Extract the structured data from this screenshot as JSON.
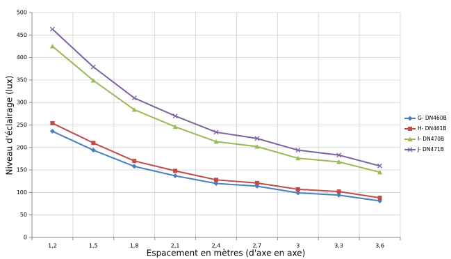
{
  "chart_data": {
    "type": "line",
    "x_label": "Espacement en mètres (d'axe en axe)",
    "y_label": "Niveau d'éclairage (lux)",
    "categories": [
      "1,2",
      "1,5",
      "1,8",
      "2,1",
      "2,4",
      "2,7",
      "3",
      "3,3",
      "3,6"
    ],
    "series": [
      {
        "name": "G- DN460B",
        "color": "#4a7ebb",
        "marker": "diamond",
        "values": [
          236,
          194,
          158,
          137,
          120,
          114,
          99,
          94,
          81
        ]
      },
      {
        "name": "H- DN461B",
        "color": "#be4b48",
        "marker": "square",
        "values": [
          254,
          210,
          170,
          148,
          128,
          121,
          107,
          102,
          88
        ]
      },
      {
        "name": "I- DN470B",
        "color": "#98b954",
        "marker": "triangle",
        "values": [
          425,
          349,
          284,
          246,
          213,
          202,
          176,
          168,
          145
        ]
      },
      {
        "name": "J- DN471B",
        "color": "#7d60a0",
        "marker": "x",
        "values": [
          463,
          379,
          310,
          270,
          234,
          220,
          194,
          183,
          159
        ]
      }
    ],
    "ylim": [
      0,
      500
    ],
    "yticks": [
      0,
      50,
      100,
      150,
      200,
      250,
      300,
      350,
      400,
      450,
      500
    ],
    "grid": true,
    "legend": "right"
  }
}
